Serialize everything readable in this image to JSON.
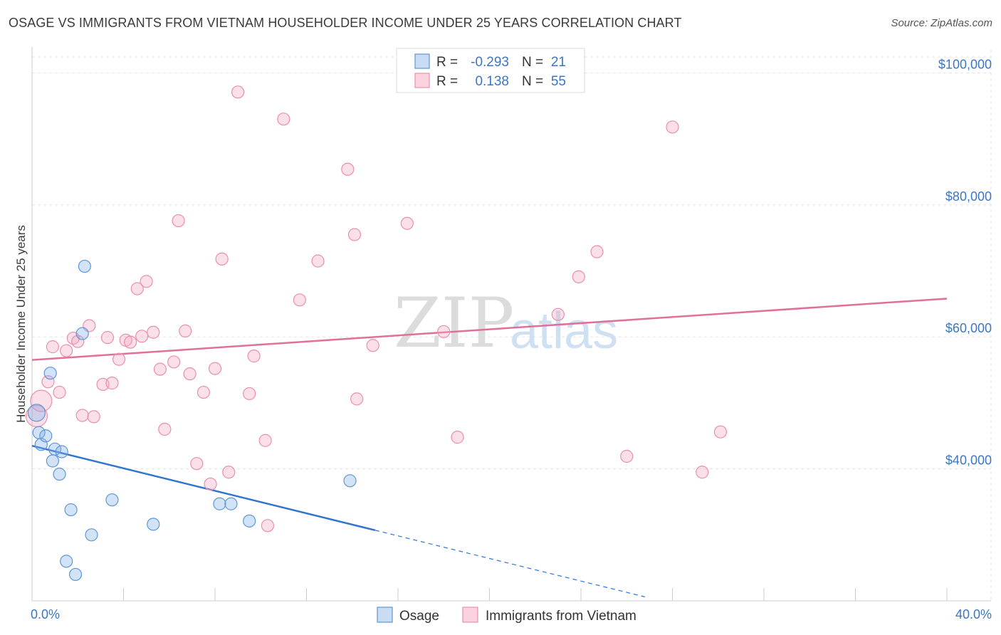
{
  "title": "OSAGE VS IMMIGRANTS FROM VIETNAM HOUSEHOLDER INCOME UNDER 25 YEARS CORRELATION CHART",
  "source": "Source: ZipAtlas.com",
  "watermark": {
    "zip": "ZIP",
    "atlas": "atlas"
  },
  "legend_box": {
    "rows": [
      {
        "r_label": "R =",
        "r_value": "-0.293",
        "n_label": "N =",
        "n_value": "21",
        "color": "#7fb0e8"
      },
      {
        "r_label": "R =",
        "r_value": "0.138",
        "n_label": "N =",
        "n_value": "55",
        "color": "#f4a6bf"
      }
    ]
  },
  "chart_data": {
    "type": "scatter",
    "title": "OSAGE VS IMMIGRANTS FROM VIETNAM HOUSEHOLDER INCOME UNDER 25 YEARS CORRELATION CHART",
    "xlabel": "",
    "ylabel": "Householder Income Under 25 years",
    "xlim": [
      0,
      40
    ],
    "ylim": [
      20000,
      103500
    ],
    "x_tick_labels": [
      "0.0%",
      "40.0%"
    ],
    "y_ticks": [
      40000,
      60000,
      80000,
      100000
    ],
    "y_tick_labels": [
      "$40,000",
      "$60,000",
      "$80,000",
      "$100,000"
    ],
    "grid": true,
    "legend_position": "bottom",
    "series": [
      {
        "name": "Osage",
        "color": "#7fb0e8",
        "points": [
          [
            0.2,
            48500
          ],
          [
            0.3,
            45500
          ],
          [
            0.4,
            43700
          ],
          [
            0.6,
            45000
          ],
          [
            0.8,
            54500
          ],
          [
            0.9,
            41200
          ],
          [
            1.0,
            43000
          ],
          [
            1.2,
            39200
          ],
          [
            1.3,
            42600
          ],
          [
            1.7,
            33800
          ],
          [
            1.5,
            26000
          ],
          [
            1.9,
            24000
          ],
          [
            2.2,
            60500
          ],
          [
            2.3,
            70700
          ],
          [
            2.6,
            30000
          ],
          [
            3.5,
            35300
          ],
          [
            5.3,
            31600
          ],
          [
            8.2,
            34700
          ],
          [
            8.7,
            34700
          ],
          [
            9.5,
            32100
          ],
          [
            13.9,
            38200
          ]
        ],
        "trend": {
          "x0": 0,
          "y0": 43500,
          "x1": 15,
          "y1": 30700,
          "x_end": 26.8,
          "y_end": 20600
        }
      },
      {
        "name": "Immigrants from Vietnam",
        "color": "#f4a6bf",
        "points": [
          [
            0.2,
            48000
          ],
          [
            0.4,
            50300
          ],
          [
            0.7,
            53200
          ],
          [
            0.9,
            58500
          ],
          [
            1.2,
            51600
          ],
          [
            1.5,
            57900
          ],
          [
            1.8,
            59800
          ],
          [
            2.0,
            59300
          ],
          [
            2.2,
            48100
          ],
          [
            2.5,
            61700
          ],
          [
            2.7,
            47900
          ],
          [
            3.1,
            52800
          ],
          [
            3.3,
            59900
          ],
          [
            3.5,
            53000
          ],
          [
            3.8,
            56600
          ],
          [
            4.1,
            59500
          ],
          [
            4.3,
            59200
          ],
          [
            4.6,
            67300
          ],
          [
            4.8,
            60100
          ],
          [
            5.0,
            68400
          ],
          [
            5.3,
            60700
          ],
          [
            5.6,
            55100
          ],
          [
            5.8,
            46000
          ],
          [
            6.2,
            56200
          ],
          [
            6.4,
            77600
          ],
          [
            6.7,
            60900
          ],
          [
            6.9,
            54400
          ],
          [
            7.2,
            40800
          ],
          [
            7.5,
            51600
          ],
          [
            7.8,
            37700
          ],
          [
            8.0,
            55200
          ],
          [
            8.3,
            71800
          ],
          [
            8.6,
            39500
          ],
          [
            9.0,
            97100
          ],
          [
            9.5,
            51400
          ],
          [
            9.7,
            57100
          ],
          [
            10.2,
            44300
          ],
          [
            10.3,
            31400
          ],
          [
            11.0,
            93000
          ],
          [
            11.7,
            65600
          ],
          [
            12.5,
            71500
          ],
          [
            13.8,
            85400
          ],
          [
            14.1,
            75500
          ],
          [
            14.2,
            50600
          ],
          [
            14.9,
            58700
          ],
          [
            16.4,
            77200
          ],
          [
            18.0,
            60800
          ],
          [
            18.6,
            44800
          ],
          [
            23.0,
            63400
          ],
          [
            23.9,
            69100
          ],
          [
            24.7,
            72900
          ],
          [
            26.0,
            41900
          ],
          [
            28.0,
            91800
          ],
          [
            29.3,
            39500
          ],
          [
            30.1,
            45600
          ]
        ],
        "trend": {
          "x0": 0,
          "y0": 56500,
          "x1": 40,
          "y1": 65800
        }
      }
    ]
  }
}
